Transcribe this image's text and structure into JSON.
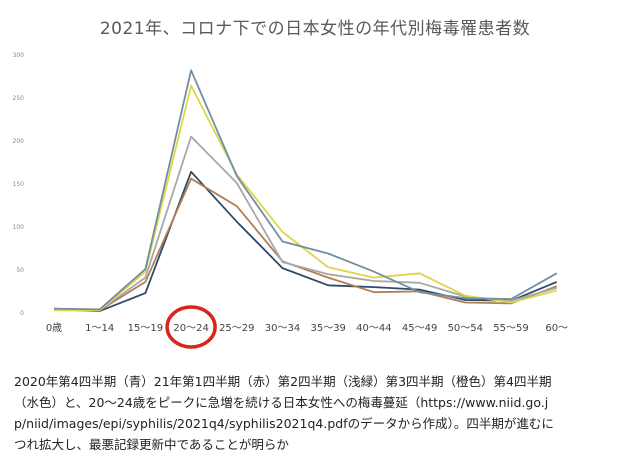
{
  "chart_data": {
    "type": "line",
    "title": "2021年、コロナ下での日本女性の年代別梅毒罹患者数",
    "categories": [
      "0歳",
      "1～14",
      "15～19",
      "20～24",
      "25～29",
      "30～34",
      "35～39",
      "40～44",
      "45～49",
      "50～54",
      "55～59",
      "60～"
    ],
    "ylim": [
      0,
      300
    ],
    "yticks": [
      0,
      50,
      100,
      150,
      200,
      250,
      300
    ],
    "grid": false,
    "legend": "none",
    "highlighted_category": "20～24",
    "highlight_color": "#d9261c",
    "series": [
      {
        "color": "#2e4a6b",
        "values": [
          3,
          1,
          22,
          163,
          105,
          51,
          31,
          29,
          26,
          14,
          13,
          35
        ]
      },
      {
        "color": "#b07f55",
        "values": [
          4,
          2,
          35,
          155,
          123,
          59,
          40,
          23,
          24,
          11,
          10,
          30
        ]
      },
      {
        "color": "#a8a8a8",
        "values": [
          3,
          2,
          40,
          204,
          150,
          58,
          44,
          36,
          34,
          18,
          13,
          28
        ]
      },
      {
        "color": "#ddd645",
        "values": [
          2,
          2,
          47,
          263,
          160,
          93,
          52,
          40,
          45,
          19,
          11,
          25
        ]
      },
      {
        "color": "#6e8fa5",
        "values": [
          4,
          3,
          50,
          281,
          158,
          82,
          68,
          47,
          23,
          16,
          15,
          45
        ]
      }
    ]
  },
  "caption": "2020年第4四半期（青）21年第1四半期（赤）第2四半期（浅緑）第3四半期（橙色）第4四半期\n（水色）と、20～24歳をピークに急増を続ける日本女性への梅毒蔓延（https://www.niid.go.j\np/niid/images/epi/syphilis/2021q4/syphilis2021q4.pdfのデータから作成）。四半期が進むに\nつれ拡大し、最悪記録更新中であることが明らか"
}
